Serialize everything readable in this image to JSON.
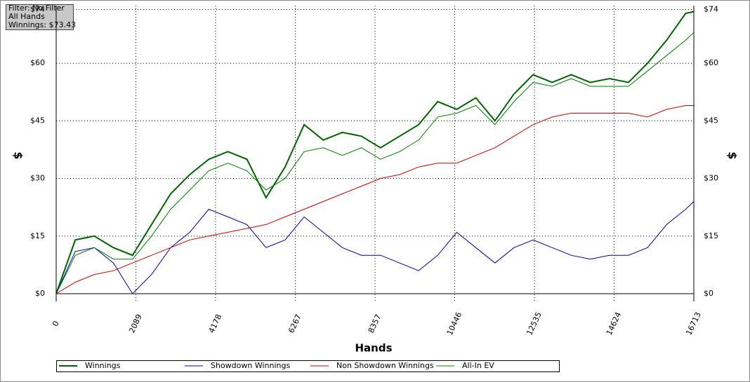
{
  "chart_data": {
    "type": "line",
    "annotations": [
      "Filter: No Filter",
      "All Hands",
      "Winnings: $73.43"
    ],
    "xlabel": "Hands",
    "ylabel": "$",
    "x": [
      0,
      500,
      1000,
      1500,
      2000,
      2500,
      3000,
      3500,
      4000,
      4500,
      5000,
      5500,
      6000,
      6500,
      7000,
      7500,
      8000,
      8500,
      9000,
      9500,
      10000,
      10500,
      11000,
      11500,
      12000,
      12500,
      13000,
      13500,
      14000,
      14500,
      15000,
      15500,
      16000,
      16500,
      16713
    ],
    "series": [
      {
        "name": "Winnings",
        "color": "#006400",
        "values": [
          0,
          14,
          15,
          12,
          10,
          18,
          26,
          31,
          35,
          37,
          35,
          25,
          33,
          44,
          40,
          42,
          41,
          38,
          41,
          44,
          50,
          48,
          51,
          45,
          52,
          57,
          55,
          57,
          55,
          56,
          55,
          60,
          66,
          73,
          73.43
        ]
      },
      {
        "name": "Showdown Winnings",
        "color": "#0000b0",
        "values": [
          0,
          11,
          12,
          8,
          0,
          5,
          12,
          16,
          22,
          20,
          18,
          12,
          14,
          20,
          16,
          12,
          10,
          10,
          8,
          6,
          10,
          16,
          12,
          8,
          12,
          14,
          12,
          10,
          9,
          10,
          10,
          12,
          18,
          22,
          24
        ]
      },
      {
        "name": "Non Showdown Winnings",
        "color": "#cc0000",
        "values": [
          0,
          3,
          5,
          6,
          8,
          10,
          12,
          14,
          15,
          16,
          17,
          18,
          20,
          22,
          24,
          26,
          28,
          30,
          31,
          33,
          34,
          34,
          36,
          38,
          41,
          44,
          46,
          47,
          47,
          47,
          47,
          46,
          48,
          49,
          49
        ]
      },
      {
        "name": "All-In EV",
        "color": "#008000",
        "values": [
          0,
          10,
          12,
          9,
          9,
          15,
          22,
          27,
          32,
          34,
          32,
          27,
          30,
          37,
          38,
          36,
          38,
          35,
          37,
          40,
          46,
          47,
          49,
          44,
          50,
          55,
          54,
          56,
          54,
          54,
          54,
          58,
          62,
          66,
          68
        ]
      }
    ],
    "xlim": [
      0,
      16713
    ],
    "xticks": [
      0,
      2089,
      4178,
      6267,
      8357,
      10446,
      12535,
      14624,
      16713
    ],
    "ylim": [
      -2,
      75
    ],
    "yticks": [
      {
        "value": 0,
        "label": "$0"
      },
      {
        "value": 15,
        "label": "$15"
      },
      {
        "value": 30,
        "label": "$30"
      },
      {
        "value": 45,
        "label": "$45"
      },
      {
        "value": 60,
        "label": "$60"
      },
      {
        "value": 74,
        "label": "$74"
      }
    ],
    "grid": true
  }
}
